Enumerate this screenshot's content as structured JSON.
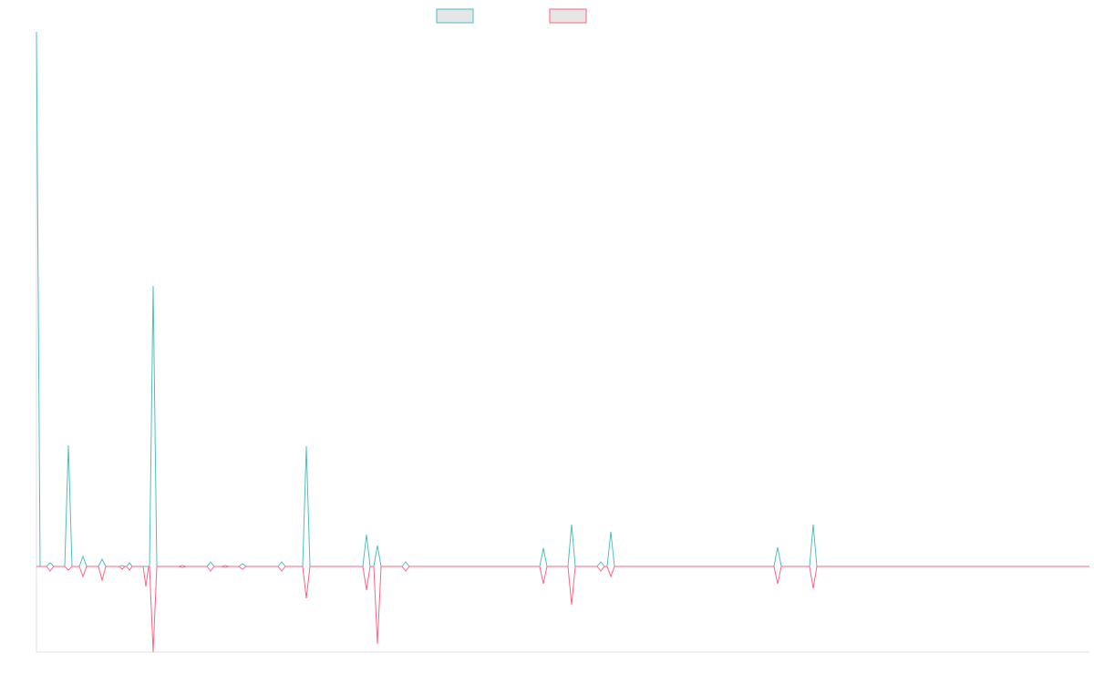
{
  "chart_data": {
    "type": "line",
    "legend": "top",
    "grid": false,
    "xlim": [
      0,
      1155
    ],
    "ylim": [
      -94,
      587
    ],
    "x": [
      0,
      4,
      11,
      15,
      19,
      31,
      35,
      39,
      47,
      51,
      55,
      68,
      72,
      76,
      91,
      94,
      97,
      99,
      102,
      105,
      117,
      120,
      123,
      124,
      128,
      132,
      156,
      160,
      164,
      187,
      191,
      195,
      203,
      207,
      211,
      222,
      226,
      230,
      265,
      269,
      273,
      292,
      296,
      300,
      358,
      362,
      366,
      370,
      374,
      378,
      401,
      405,
      409,
      552,
      556,
      560,
      583,
      587,
      591,
      615,
      619,
      623,
      626,
      630,
      634,
      809,
      813,
      817,
      848,
      852,
      856,
      1155
    ],
    "series": [
      {
        "color": "#4bc0c0",
        "values": [
          587,
          0,
          0,
          4,
          0,
          0,
          133,
          0,
          0,
          11,
          0,
          0,
          8,
          0,
          0,
          1,
          0,
          0,
          4,
          0,
          0,
          0,
          0,
          0,
          308,
          0,
          0,
          1,
          0,
          0,
          5,
          0,
          0,
          1,
          0,
          0,
          3,
          0,
          0,
          5,
          0,
          0,
          132,
          0,
          0,
          35,
          0,
          0,
          23,
          0,
          0,
          5,
          0,
          0,
          20,
          0,
          0,
          46,
          0,
          0,
          5,
          0,
          0,
          38,
          0,
          0,
          21,
          0,
          0,
          46,
          0,
          0
        ]
      },
      {
        "color": "#ff6384",
        "values": [
          0,
          0,
          0,
          -5,
          0,
          0,
          -4,
          0,
          0,
          -11,
          0,
          0,
          -15,
          0,
          0,
          -3,
          0,
          0,
          -4,
          0,
          0,
          -22,
          0,
          0,
          -94,
          0,
          0,
          -1,
          0,
          0,
          -5,
          0,
          0,
          -1,
          0,
          0,
          -3,
          0,
          0,
          -5,
          0,
          0,
          -35,
          0,
          0,
          -26,
          0,
          0,
          -85,
          0,
          0,
          -5,
          0,
          0,
          -19,
          0,
          0,
          -42,
          0,
          0,
          -5,
          0,
          0,
          -11,
          0,
          0,
          -19,
          0,
          0,
          -24,
          0,
          0
        ]
      }
    ]
  }
}
